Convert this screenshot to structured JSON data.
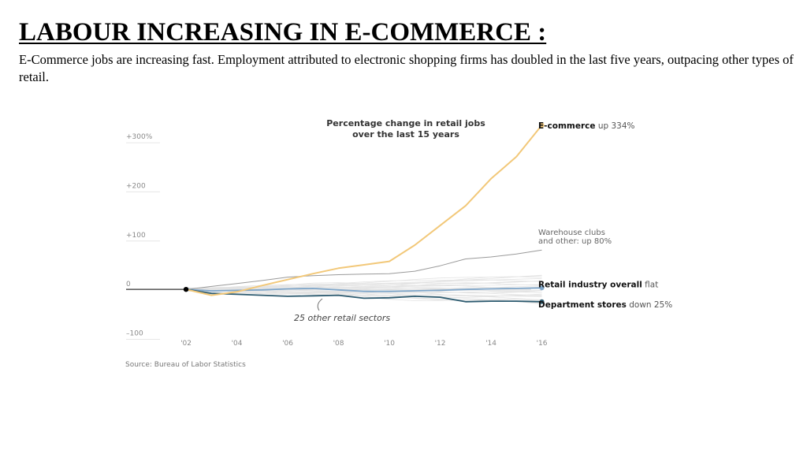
{
  "slide": {
    "title": "LABOUR INCREASING IN E-COMMERCE :",
    "body": "E-Commerce jobs are increasing fast. Employment attributed to electronic shopping firms has doubled in the last five years, outpacing other types of retail."
  },
  "colors": {
    "ecommerce": "#f2c879",
    "warehouse": "#9a9a9a",
    "retail_overall": "#7fa6c9",
    "department": "#2d5b70",
    "other_sectors": "#e3e3e3",
    "axis_text": "#888888"
  },
  "chart_data": {
    "type": "line",
    "title": "Percentage change in retail jobs over the last 15 years",
    "title_lines": [
      "Percentage change in retail jobs",
      "over the last 15 years"
    ],
    "source": "Source: Bureau of Labor Statistics",
    "xlabel": "",
    "ylabel": "",
    "xlim": [
      2000.2,
      2016.2
    ],
    "ylim": [
      -120,
      345
    ],
    "x_ticks": [
      2002,
      2004,
      2006,
      2008,
      2010,
      2012,
      2014,
      2016
    ],
    "x_tick_labels": [
      "'02",
      "'04",
      "'06",
      "'08",
      "'10",
      "'12",
      "'14",
      "'16"
    ],
    "y_ticks": [
      300,
      200,
      100,
      0,
      -100
    ],
    "y_tick_labels": [
      "+300%",
      "+200",
      "+100",
      "0",
      "–100"
    ],
    "grid": false,
    "start_year": 2002,
    "series": [
      {
        "key": "ecommerce",
        "x": [
          2002,
          2003,
          2004,
          2005,
          2006,
          2007,
          2008,
          2009,
          2010,
          2011,
          2012,
          2013,
          2014,
          2015,
          2016
        ],
        "values": [
          0,
          -12,
          -5,
          8,
          20,
          32,
          43,
          50,
          57,
          90,
          130,
          170,
          225,
          270,
          334
        ],
        "label_name": "E-commerce",
        "label_suffix": "up 334%"
      },
      {
        "key": "warehouse",
        "x": [
          2002,
          2003,
          2004,
          2005,
          2006,
          2007,
          2008,
          2009,
          2010,
          2011,
          2012,
          2013,
          2014,
          2015,
          2016
        ],
        "values": [
          0,
          6,
          12,
          18,
          25,
          28,
          30,
          31,
          32,
          37,
          48,
          62,
          66,
          72,
          80
        ],
        "label_lines": [
          "Warehouse clubs",
          "and other: up 80%"
        ]
      },
      {
        "key": "retail_overall",
        "x": [
          2002,
          2003,
          2004,
          2005,
          2006,
          2007,
          2008,
          2009,
          2010,
          2011,
          2012,
          2013,
          2014,
          2015,
          2016
        ],
        "values": [
          0,
          -3,
          -2,
          -1,
          1,
          2,
          -1,
          -4,
          -4,
          -3,
          -2,
          0,
          1,
          2,
          3
        ],
        "label_name": "Retail industry overall",
        "label_suffix": "flat"
      },
      {
        "key": "department",
        "x": [
          2002,
          2003,
          2004,
          2005,
          2006,
          2007,
          2008,
          2009,
          2010,
          2011,
          2012,
          2013,
          2014,
          2015,
          2016
        ],
        "values": [
          0,
          -8,
          -10,
          -12,
          -14,
          -13,
          -12,
          -18,
          -17,
          -14,
          -16,
          -25,
          -24,
          -24,
          -25
        ],
        "label_name": "Department stores",
        "label_suffix": "down 25%"
      }
    ],
    "annotation": "25 other retail sectors"
  }
}
